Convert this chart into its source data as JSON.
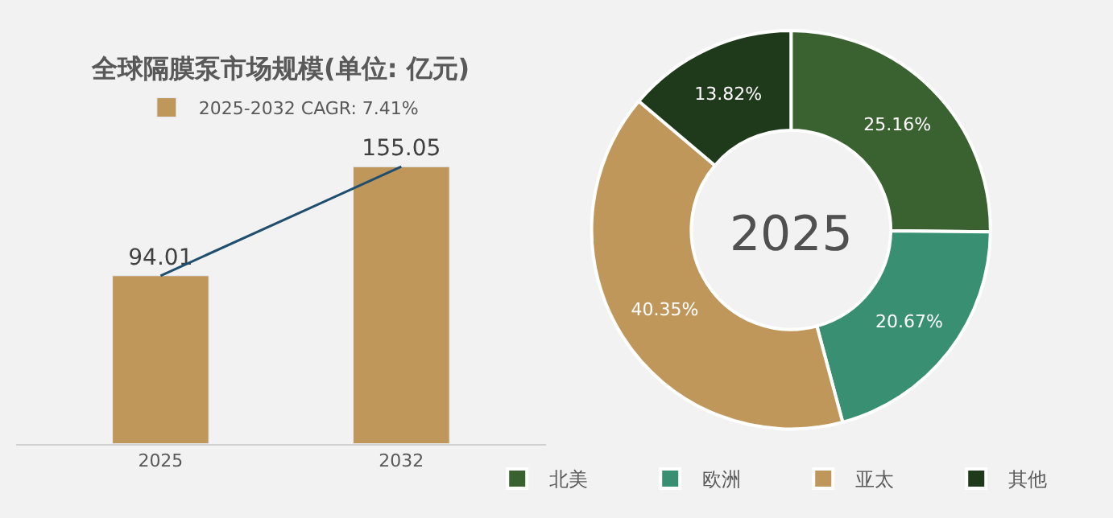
{
  "chart_data": [
    {
      "type": "bar",
      "title": "全球隔膜泵市场规模(单位: 亿元)",
      "categories": [
        "2025",
        "2032"
      ],
      "legend": "top",
      "grid": false,
      "series": [
        {
          "name": "2025-2032 CAGR: 7.41%",
          "color": "#c0975a",
          "values": [
            94.01,
            155.05
          ],
          "value_labels": [
            "94.01",
            "155.05"
          ]
        },
        {
          "type": "line",
          "color": "#1f4e6e",
          "values": [
            94.01,
            155.05
          ]
        }
      ]
    },
    {
      "type": "donut",
      "categories": [
        "北美",
        "欧洲",
        "亚太",
        "其他"
      ],
      "values": [
        25.16,
        20.67,
        40.35,
        13.82
      ],
      "colors": [
        "#3a6130",
        "#388f72",
        "#c0975a",
        "#1f3a1b"
      ],
      "value_labels": [
        "25.16%",
        "20.67%",
        "40.35%",
        "13.82%"
      ],
      "annotations": [
        "2025"
      ],
      "legend": "bottom"
    }
  ]
}
